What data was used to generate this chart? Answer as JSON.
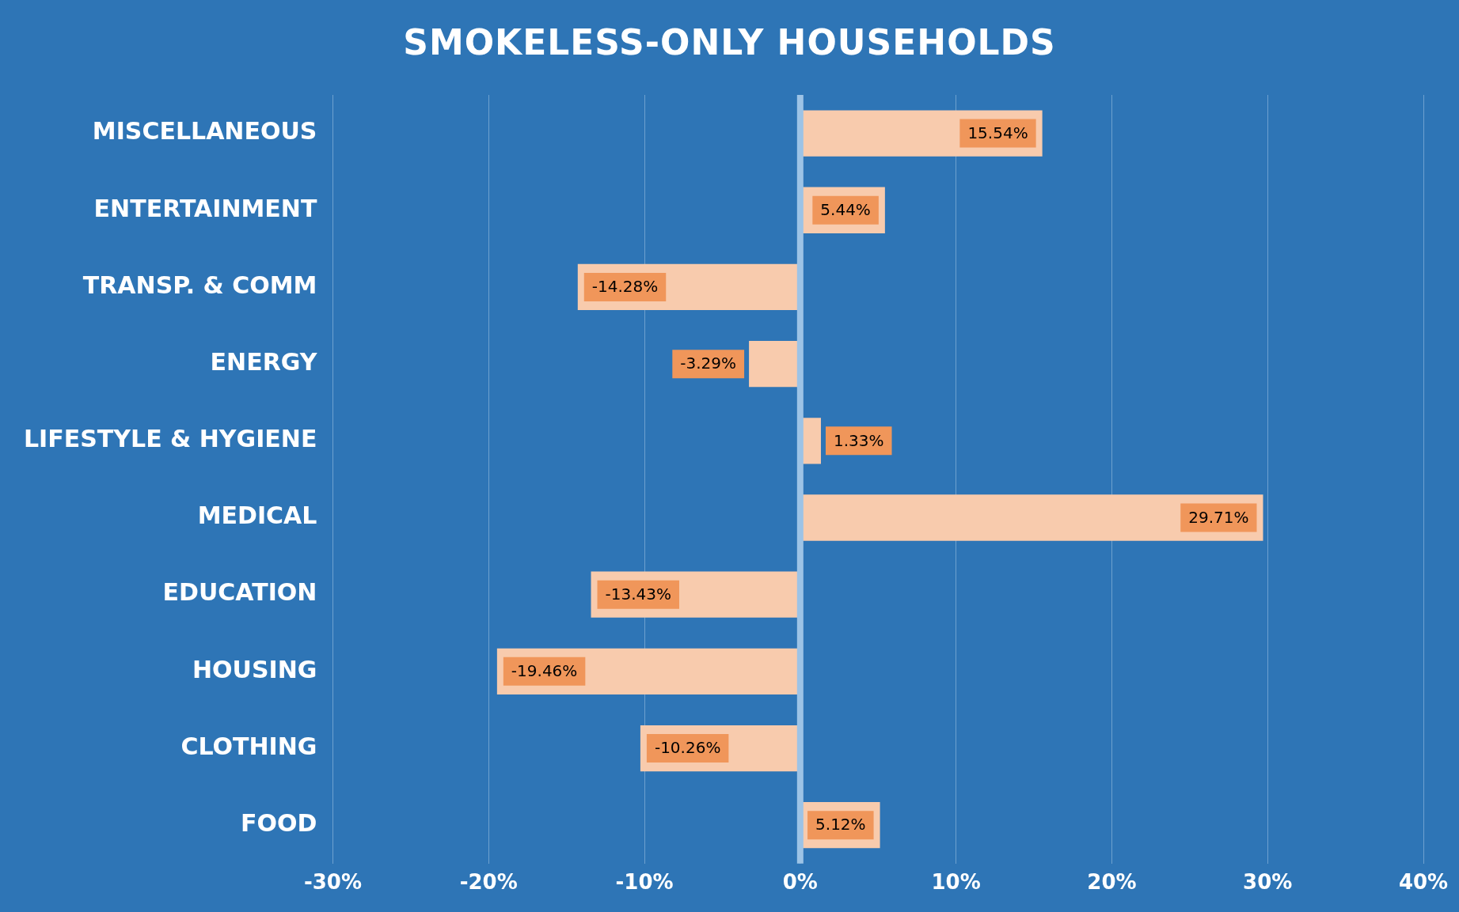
{
  "chart_data": {
    "type": "bar",
    "orientation": "horizontal",
    "title": "SMOKELESS-ONLY HOUSEHOLDS",
    "categories": [
      "MISCELLANEOUS",
      "ENTERTAINMENT",
      "TRANSP. & COMM",
      "ENERGY",
      "LIFESTYLE & HYGIENE",
      "MEDICAL",
      "EDUCATION",
      "HOUSING",
      "CLOTHING",
      "FOOD"
    ],
    "values": [
      15.54,
      5.44,
      -14.28,
      -3.29,
      1.33,
      29.71,
      -13.43,
      -19.46,
      -10.26,
      5.12
    ],
    "value_labels": [
      "15.54%",
      "5.44%",
      "-14.28%",
      "-3.29%",
      "1.33%",
      "29.71%",
      "-13.43%",
      "-19.46%",
      "-10.26%",
      "5.12%"
    ],
    "color": "#f8cbad",
    "xlim": [
      -30,
      40
    ],
    "xticks": [
      {
        "value": -30,
        "label": "-30%"
      },
      {
        "value": -20,
        "label": "-20%"
      },
      {
        "value": -10,
        "label": "-10%"
      },
      {
        "value": 0,
        "label": "0%"
      },
      {
        "value": 10,
        "label": "10%"
      },
      {
        "value": 20,
        "label": "20%"
      },
      {
        "value": 30,
        "label": "30%"
      },
      {
        "value": 40,
        "label": "40%"
      }
    ],
    "grid": "x",
    "ref_lines": [
      {
        "axis": "x",
        "value": 0,
        "color": "#9dc3e6"
      }
    ]
  }
}
